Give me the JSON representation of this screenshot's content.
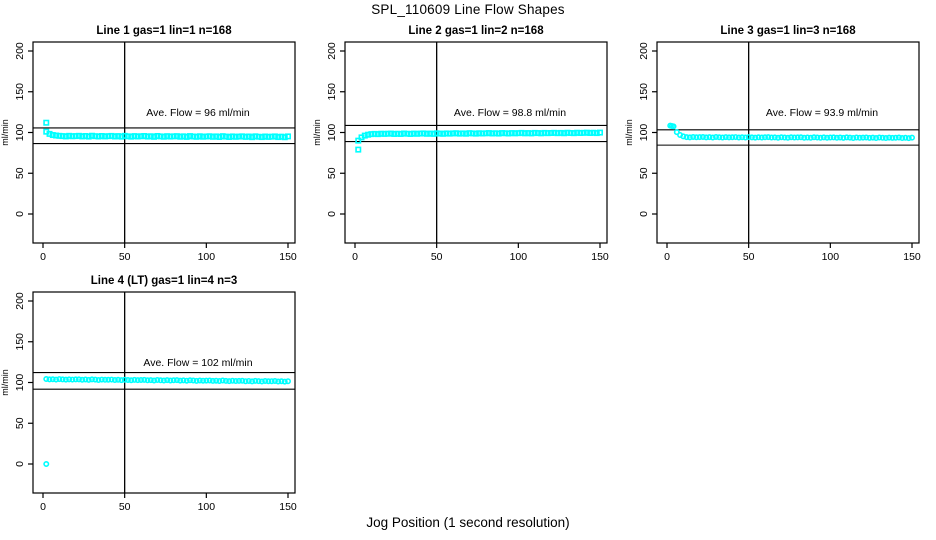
{
  "page": {
    "title": "SPL_110609  Line Flow Shapes",
    "xlabel": "Jog Position (1 second resolution)",
    "ylabel": "ml/min",
    "point_color": "#00FFFF",
    "axis_color": "#000000",
    "background_color": "#FFFFFF"
  },
  "chart_data": [
    {
      "type": "scatter",
      "title": "Line 1 gas=1 lin=1 n=168",
      "annotation": "Ave. Flow =  96  ml/min",
      "ave_flow": 96,
      "line": 1,
      "gas": 1,
      "lin": 1,
      "n": 168,
      "ylabel": "ml/min",
      "xlim": [
        0,
        150
      ],
      "ylim": [
        0,
        200
      ],
      "x_ticks": [
        0,
        50,
        100,
        150
      ],
      "y_ticks": [
        0,
        50,
        100,
        150,
        200
      ],
      "vline_x": 50,
      "hlines": [
        105.6,
        86.4
      ],
      "marker": "square",
      "x_start": 2,
      "x_step": 2,
      "y": [
        101.0,
        98.3,
        96.9,
        96.3,
        95.9,
        95.6,
        95.2,
        95.9,
        95.4,
        95.6,
        95.9,
        95.2,
        95.7,
        95.0,
        96.0,
        95.5,
        95.1,
        95.7,
        95.2,
        95.5,
        95.8,
        95.1,
        95.6,
        94.9,
        95.9,
        95.3,
        94.9,
        95.6,
        95.1,
        95.4,
        95.7,
        95.0,
        95.4,
        94.7,
        95.7,
        95.2,
        94.8,
        95.5,
        95.0,
        95.3,
        95.5,
        94.8,
        95.3,
        94.6,
        95.6,
        95.1,
        94.7,
        95.4,
        94.8,
        95.1,
        95.4,
        94.7,
        95.2,
        94.5,
        95.5,
        95.0,
        94.5,
        95.2,
        94.7,
        95.0,
        95.3,
        94.6,
        95.1,
        94.3,
        95.3,
        94.8,
        94.4,
        95.1,
        94.6,
        94.9,
        95.2,
        94.4,
        94.9,
        94.2,
        95.2
      ],
      "outliers": [
        [
          2,
          112
        ]
      ]
    },
    {
      "type": "scatter",
      "title": "Line 2 gas=1 lin=2 n=168",
      "annotation": "Ave. Flow =  98.8  ml/min",
      "ave_flow": 98.8,
      "line": 2,
      "gas": 1,
      "lin": 2,
      "n": 168,
      "ylabel": "ml/min",
      "xlim": [
        0,
        150
      ],
      "ylim": [
        0,
        200
      ],
      "x_ticks": [
        0,
        50,
        100,
        150
      ],
      "y_ticks": [
        0,
        50,
        100,
        150,
        200
      ],
      "vline_x": 50,
      "hlines": [
        108.7,
        88.9
      ],
      "marker": "square",
      "x_start": 2,
      "x_step": 2,
      "y": [
        90.0,
        94.0,
        96.2,
        97.3,
        98.0,
        98.3,
        98.0,
        98.5,
        98.3,
        98.5,
        98.7,
        98.2,
        98.5,
        98.2,
        98.8,
        98.5,
        98.2,
        98.7,
        98.4,
        98.7,
        98.9,
        98.4,
        98.7,
        98.3,
        99.0,
        98.7,
        98.4,
        98.9,
        98.6,
        98.9,
        99.1,
        98.6,
        98.9,
        98.5,
        99.2,
        98.9,
        98.6,
        99.1,
        98.8,
        99.0,
        99.3,
        98.8,
        99.1,
        98.7,
        99.3,
        99.1,
        98.8,
        99.3,
        99.0,
        99.2,
        99.5,
        99.0,
        99.3,
        98.9,
        99.5,
        99.3,
        99.0,
        99.5,
        99.2,
        99.4,
        99.6,
        99.2,
        99.5,
        99.1,
        99.7,
        99.4,
        99.2,
        99.7,
        99.4,
        99.6,
        99.8,
        99.4,
        99.7,
        99.3,
        99.9
      ],
      "outliers": [
        [
          2,
          79
        ]
      ]
    },
    {
      "type": "scatter",
      "title": "Line 3 gas=1 lin=3 n=168",
      "annotation": "Ave. Flow =  93.9  ml/min",
      "ave_flow": 93.9,
      "line": 3,
      "gas": 1,
      "lin": 3,
      "n": 168,
      "ylabel": "ml/min",
      "xlim": [
        0,
        150
      ],
      "ylim": [
        0,
        200
      ],
      "x_ticks": [
        0,
        50,
        100,
        150
      ],
      "y_ticks": [
        0,
        50,
        100,
        150,
        200
      ],
      "vline_x": 50,
      "hlines": [
        103.3,
        84.5
      ],
      "marker": "circle",
      "x_start": 2,
      "x_step": 2,
      "y": [
        108.5,
        107.5,
        100.5,
        97.0,
        95.3,
        94.3,
        94.0,
        94.5,
        94.2,
        94.3,
        94.5,
        94.0,
        94.3,
        93.9,
        94.5,
        94.2,
        93.9,
        94.3,
        94.0,
        94.2,
        94.4,
        93.9,
        94.2,
        93.8,
        94.4,
        94.0,
        93.7,
        94.2,
        93.9,
        94.1,
        94.3,
        93.8,
        94.0,
        93.6,
        94.2,
        93.9,
        93.6,
        94.1,
        93.8,
        94.0,
        94.1,
        93.6,
        93.9,
        93.5,
        94.1,
        93.8,
        93.5,
        94.0,
        93.6,
        93.8,
        94.0,
        93.5,
        93.8,
        93.4,
        94.0,
        93.7,
        93.3,
        93.8,
        93.5,
        93.7,
        93.9,
        93.4,
        93.7,
        93.2,
        93.8,
        93.5,
        93.2,
        93.7,
        93.4,
        93.6,
        93.8,
        93.2,
        93.5,
        93.1,
        93.7
      ],
      "outliers": [
        [
          3,
          108
        ]
      ]
    },
    {
      "type": "scatter",
      "title": "Line 4 (LT) gas=1 lin=4 n=3",
      "annotation": "Ave. Flow =  102  ml/min",
      "ave_flow": 102,
      "line": 4,
      "gas": 1,
      "lin": 4,
      "n": 3,
      "ylabel": "ml/min",
      "xlim": [
        0,
        150
      ],
      "ylim": [
        0,
        200
      ],
      "x_ticks": [
        0,
        50,
        100,
        150
      ],
      "y_ticks": [
        0,
        50,
        100,
        150,
        200
      ],
      "vline_x": 50,
      "hlines": [
        112.2,
        91.8
      ],
      "marker": "circle",
      "x_start": 2,
      "x_step": 2,
      "y": [
        104.3,
        103.8,
        104.0,
        103.6,
        104.2,
        103.8,
        103.5,
        103.9,
        103.6,
        103.8,
        103.9,
        103.4,
        103.7,
        103.2,
        103.8,
        103.5,
        103.1,
        103.6,
        103.3,
        103.4,
        103.6,
        103.0,
        103.3,
        102.9,
        103.4,
        103.1,
        102.8,
        103.2,
        102.9,
        103.1,
        103.2,
        102.7,
        102.9,
        102.5,
        103.1,
        102.7,
        102.4,
        102.9,
        102.5,
        102.7,
        102.9,
        102.3,
        102.6,
        102.2,
        102.7,
        102.4,
        102.0,
        102.5,
        102.2,
        102.3,
        102.5,
        102.0,
        102.2,
        101.8,
        102.4,
        102.0,
        101.7,
        102.1,
        101.8,
        102.0,
        102.1,
        101.6,
        101.9,
        101.4,
        102.0,
        101.7,
        101.3,
        101.8,
        101.5,
        101.6,
        101.8,
        101.2,
        101.5,
        101.1,
        101.6
      ],
      "outliers": [
        [
          2,
          0
        ]
      ]
    }
  ]
}
